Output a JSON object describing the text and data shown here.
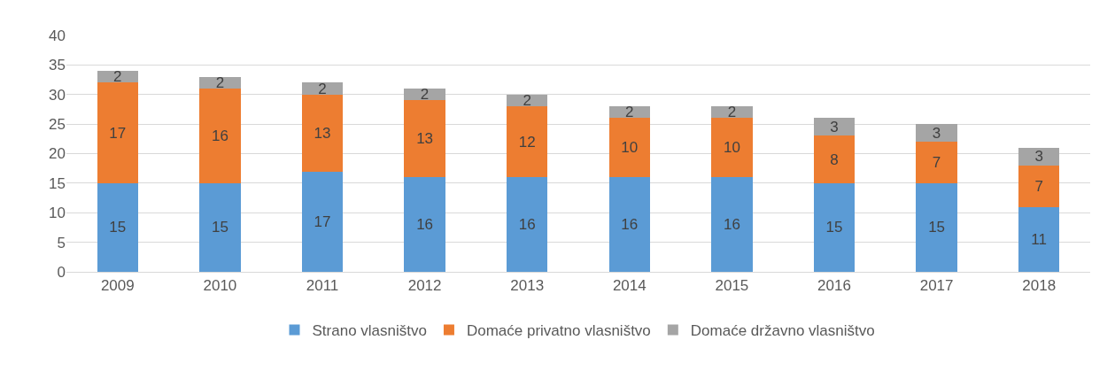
{
  "chart_data": {
    "type": "bar",
    "stacked": true,
    "categories": [
      "2009",
      "2010",
      "2011",
      "2012",
      "2013",
      "2014",
      "2015",
      "2016",
      "2017",
      "2018"
    ],
    "series": [
      {
        "name": "Strano vlasništvo",
        "color": "#5b9bd5",
        "values": [
          15,
          15,
          17,
          16,
          16,
          16,
          16,
          15,
          15,
          11
        ]
      },
      {
        "name": "Domaće privatno vlasništvo",
        "color": "#ed7d31",
        "values": [
          17,
          16,
          13,
          13,
          12,
          10,
          10,
          8,
          7,
          7
        ]
      },
      {
        "name": "Domaće državno vlasništvo",
        "color": "#a5a5a5",
        "values": [
          2,
          2,
          2,
          2,
          2,
          2,
          2,
          3,
          3,
          3
        ]
      }
    ],
    "ylim": [
      0,
      40
    ],
    "yticks": [
      0,
      5,
      10,
      15,
      20,
      25,
      30,
      35,
      40
    ],
    "grid": "y",
    "legend": "bottom",
    "data_labels": true
  }
}
